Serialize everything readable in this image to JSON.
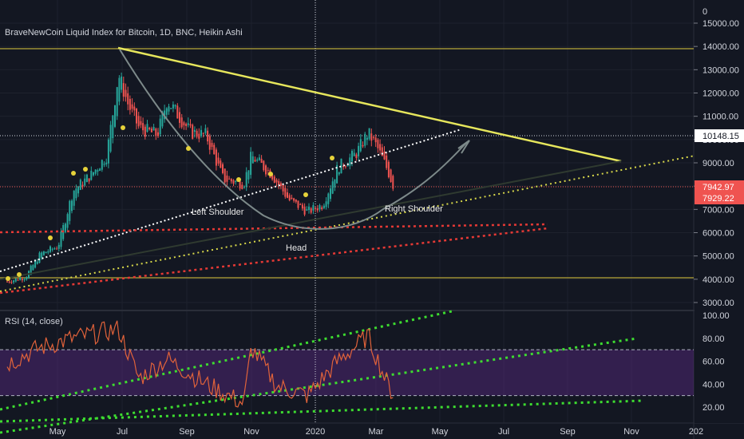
{
  "header": {
    "title": "BraveNewCoin Liquid Index for Bitcoin, 1D, BNC, Heikin Ashi"
  },
  "price_axis": {
    "top_tick": "0",
    "ticks": [
      "15000.00",
      "14000.00",
      "13000.00",
      "12000.00",
      "11000.00",
      "10000.00",
      "9000.00",
      "8000.00",
      "7000.00",
      "6000.00",
      "5000.00",
      "4000.00",
      "3000.00"
    ]
  },
  "price_labels": {
    "crosshair": "10148.15",
    "last_1": "7942.97",
    "last_2": "7929.22"
  },
  "annotations": {
    "left_shoulder": "Left Shoulder",
    "head": "Head",
    "right_shoulder": "Right Shoulder"
  },
  "rsi": {
    "title": "RSI (14, close)",
    "ticks": [
      "100.00",
      "80.00",
      "60.00",
      "40.00",
      "20.00"
    ]
  },
  "time_axis": {
    "labels": [
      "May",
      "Jul",
      "Sep",
      "Nov",
      "2020",
      "Mar",
      "May",
      "Jul",
      "Sep",
      "Nov",
      "202"
    ]
  },
  "colors": {
    "background": "#131722",
    "up_candle": "#26a69a",
    "down_candle": "#ef5350",
    "trend_yellow": "#e6e65c",
    "red_dotted": "#e53935",
    "white_dotted": "#ffffff",
    "rsi_line": "#e0623a",
    "rsi_band": "#5b2a86",
    "green_dotted": "#3ddc30"
  },
  "chart_data": [
    {
      "type": "candlestick",
      "title": "BraveNewCoin Liquid Index for Bitcoin, 1D, BNC, Heikin Ashi",
      "ylim": [
        2700,
        15500
      ],
      "y_scale": "linear",
      "grid": true,
      "x_labels": [
        "May",
        "Jul",
        "Sep",
        "Nov",
        "2020",
        "Mar"
      ],
      "close_path": [
        {
          "date": "2019-03-15",
          "close": 3900
        },
        {
          "date": "2019-04-01",
          "close": 4100
        },
        {
          "date": "2019-04-15",
          "close": 5100
        },
        {
          "date": "2019-05-01",
          "close": 5400
        },
        {
          "date": "2019-05-15",
          "close": 7800
        },
        {
          "date": "2019-06-01",
          "close": 8500
        },
        {
          "date": "2019-06-15",
          "close": 9300
        },
        {
          "date": "2019-06-26",
          "close": 12800
        },
        {
          "date": "2019-07-05",
          "close": 11500
        },
        {
          "date": "2019-07-15",
          "close": 10500
        },
        {
          "date": "2019-08-01",
          "close": 10200
        },
        {
          "date": "2019-08-10",
          "close": 11700
        },
        {
          "date": "2019-09-01",
          "close": 10300
        },
        {
          "date": "2019-09-15",
          "close": 10200
        },
        {
          "date": "2019-10-01",
          "close": 8300
        },
        {
          "date": "2019-10-20",
          "close": 8100
        },
        {
          "date": "2019-10-27",
          "close": 9300
        },
        {
          "date": "2019-11-15",
          "close": 8500
        },
        {
          "date": "2019-12-01",
          "close": 7400
        },
        {
          "date": "2019-12-18",
          "close": 6900
        },
        {
          "date": "2020-01-01",
          "close": 7200
        },
        {
          "date": "2020-01-15",
          "close": 8800
        },
        {
          "date": "2020-02-01",
          "close": 9400
        },
        {
          "date": "2020-02-12",
          "close": 10300
        },
        {
          "date": "2020-02-20",
          "close": 9700
        },
        {
          "date": "2020-03-01",
          "close": 8700
        },
        {
          "date": "2020-03-07",
          "close": 7930
        }
      ],
      "price_labels": [
        10148.15,
        7942.97,
        7929.22
      ],
      "annotations": [
        "Left Shoulder",
        "Head",
        "Right Shoulder"
      ]
    },
    {
      "type": "line",
      "title": "RSI (14, close)",
      "ylim": [
        10,
        100
      ],
      "levels": [
        70,
        30
      ],
      "series": [
        {
          "name": "RSI (14, close)",
          "x": [
            "2019-03-15",
            "2019-04-15",
            "2019-05-15",
            "2019-06-26",
            "2019-07-15",
            "2019-08-10",
            "2019-09-15",
            "2019-10-20",
            "2019-10-27",
            "2019-11-20",
            "2019-12-18",
            "2020-01-15",
            "2020-02-12",
            "2020-03-01",
            "2020-03-07"
          ],
          "values": [
            58,
            72,
            80,
            88,
            45,
            62,
            40,
            23,
            72,
            38,
            30,
            60,
            82,
            40,
            30
          ]
        }
      ]
    }
  ]
}
